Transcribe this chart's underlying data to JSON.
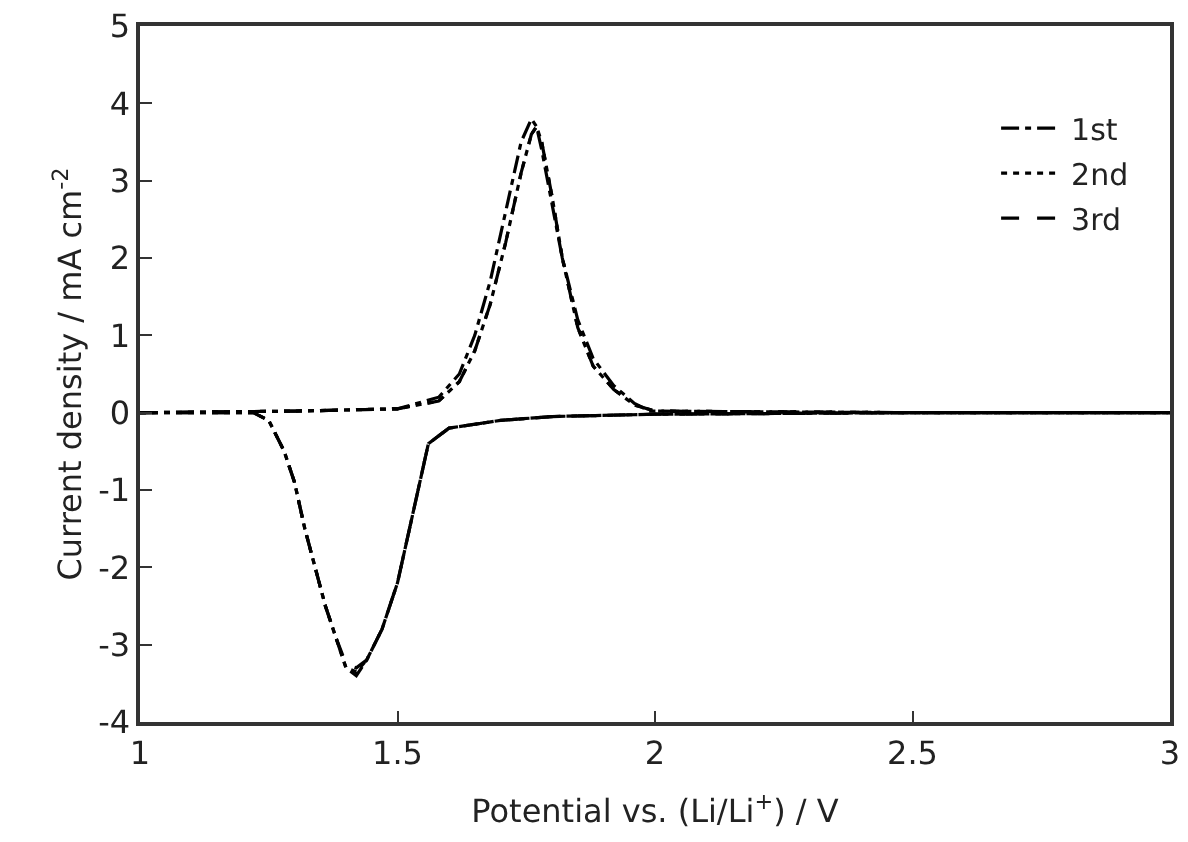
{
  "chart_data": {
    "type": "line",
    "xlabel": "Potential vs. (Li/Li$^{+}$) / V",
    "ylabel": "Current density / mA cm$^{-2}$",
    "xlim": [
      1,
      3
    ],
    "xticks": [
      1,
      1.5,
      2,
      2.5,
      3
    ],
    "ylim": [
      -4,
      5
    ],
    "yticks": [
      -4,
      -3,
      -2,
      -1,
      0,
      1,
      2,
      3,
      4,
      5
    ],
    "legend": "top right",
    "marker": "none",
    "series": [
      {
        "name": "1st",
        "color": "#000000",
        "line_style": "dashdot",
        "x": [
          1.0,
          1.3,
          1.5,
          1.58,
          1.62,
          1.65,
          1.68,
          1.71,
          1.74,
          1.76,
          1.77,
          1.78,
          1.8,
          1.82,
          1.85,
          1.88,
          1.92,
          1.96,
          1.99,
          2.5,
          3.0
        ],
        "values": [
          0,
          0.02,
          0.05,
          0.2,
          0.5,
          1.0,
          1.7,
          2.6,
          3.5,
          3.8,
          3.7,
          3.4,
          2.7,
          2.0,
          1.2,
          0.7,
          0.35,
          0.12,
          0.02,
          0,
          0
        ]
      },
      {
        "name": "2nd",
        "color": "#000000",
        "line_style": "dotted",
        "x": [
          1.0,
          1.3,
          1.5,
          1.58,
          1.62,
          1.65,
          1.68,
          1.71,
          1.74,
          1.76,
          1.77,
          1.78,
          1.8,
          1.82,
          1.85,
          1.88,
          1.92,
          1.96,
          2.0,
          2.5,
          3.0
        ],
        "values": [
          0,
          0.02,
          0.05,
          0.15,
          0.4,
          0.8,
          1.4,
          2.2,
          3.1,
          3.6,
          3.7,
          3.5,
          2.8,
          2.0,
          1.1,
          0.6,
          0.3,
          0.1,
          0.02,
          0,
          0
        ]
      },
      {
        "name": "3rd",
        "color": "#000000",
        "line_style": "dashed",
        "x": [
          1.0,
          1.3,
          1.5,
          1.58,
          1.62,
          1.65,
          1.68,
          1.71,
          1.74,
          1.76,
          1.77,
          1.78,
          1.8,
          1.82,
          1.85,
          1.88,
          1.92,
          1.96,
          2.0,
          2.5,
          3.0
        ],
        "values": [
          0,
          0.02,
          0.05,
          0.15,
          0.4,
          0.8,
          1.4,
          2.2,
          3.1,
          3.6,
          3.7,
          3.5,
          2.8,
          2.0,
          1.1,
          0.6,
          0.3,
          0.1,
          0.02,
          0,
          0
        ]
      },
      {
        "color": "#000000",
        "line_style": "dashdot",
        "x": [
          1.0,
          1.1,
          1.22,
          1.25,
          1.28,
          1.3,
          1.32,
          1.34,
          1.36,
          1.38,
          1.4,
          1.42,
          1.44,
          1.47,
          1.5,
          1.52,
          1.54,
          1.56,
          1.6,
          1.7,
          1.8,
          2.0,
          2.5,
          3.0
        ],
        "values": [
          0,
          0,
          0,
          -0.1,
          -0.5,
          -0.9,
          -1.5,
          -2.0,
          -2.5,
          -2.9,
          -3.3,
          -3.4,
          -3.2,
          -2.8,
          -2.2,
          -1.6,
          -1.0,
          -0.4,
          -0.2,
          -0.1,
          -0.05,
          -0.02,
          0,
          0
        ]
      },
      {
        "color": "#000000",
        "line_style": "dotted",
        "x": [
          1.0,
          1.1,
          1.22,
          1.25,
          1.28,
          1.3,
          1.32,
          1.34,
          1.36,
          1.38,
          1.4,
          1.42,
          1.44,
          1.47,
          1.5,
          1.52,
          1.54,
          1.56,
          1.6,
          1.7,
          1.8,
          2.0,
          2.5,
          3.0
        ],
        "values": [
          0,
          0,
          0,
          -0.1,
          -0.5,
          -0.9,
          -1.5,
          -2.0,
          -2.5,
          -2.9,
          -3.3,
          -3.35,
          -3.2,
          -2.8,
          -2.2,
          -1.6,
          -1.0,
          -0.4,
          -0.2,
          -0.1,
          -0.05,
          -0.02,
          0,
          0
        ]
      },
      {
        "color": "#000000",
        "line_style": "dashed",
        "x": [
          1.0,
          1.1,
          1.22,
          1.25,
          1.28,
          1.3,
          1.32,
          1.34,
          1.36,
          1.38,
          1.4,
          1.42,
          1.44,
          1.47,
          1.5,
          1.52,
          1.54,
          1.56,
          1.6,
          1.7,
          1.8,
          2.0,
          2.5,
          3.0
        ],
        "values": [
          0,
          0,
          0,
          -0.1,
          -0.5,
          -0.9,
          -1.5,
          -2.0,
          -2.5,
          -2.9,
          -3.25,
          -3.3,
          -3.2,
          -2.8,
          -2.2,
          -1.6,
          -1.0,
          -0.4,
          -0.2,
          -0.1,
          -0.05,
          -0.02,
          0,
          0
        ]
      }
    ]
  }
}
